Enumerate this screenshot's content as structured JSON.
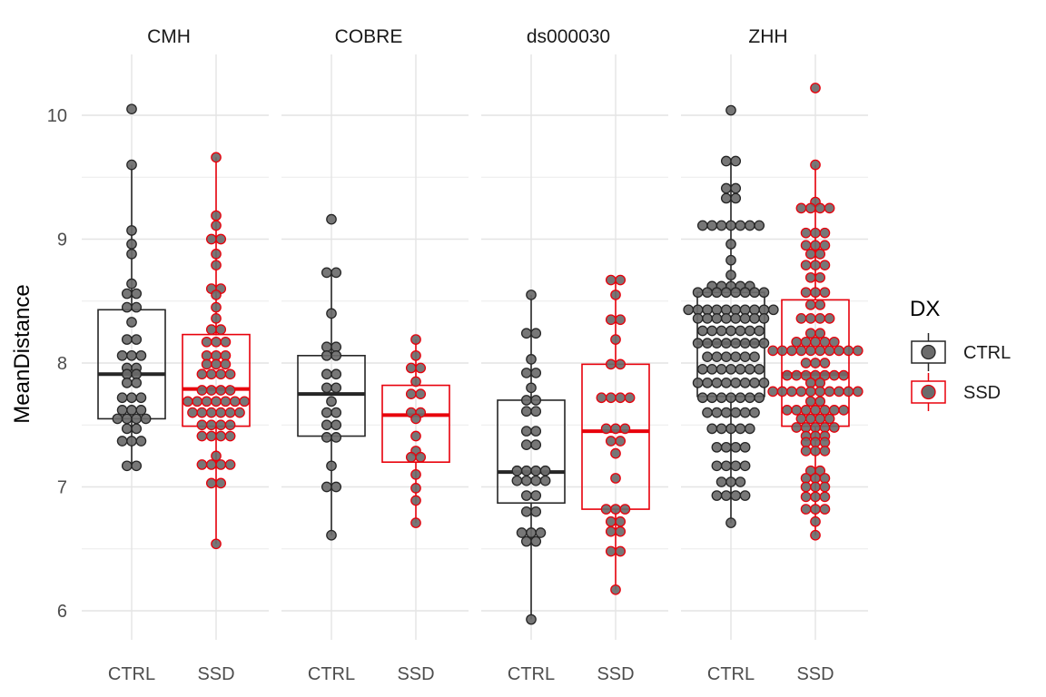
{
  "chart_data": {
    "type": "box",
    "facets": [
      "CMH",
      "COBRE",
      "ds000030",
      "ZHH"
    ],
    "groups": [
      "CTRL",
      "SSD"
    ],
    "ylabel": "MeanDistance",
    "ylim": [
      5.7,
      10.5
    ],
    "yticks": [
      6,
      7,
      8,
      9,
      10
    ],
    "grid": true,
    "legend": {
      "title": "DX",
      "position": "right",
      "entries": [
        {
          "label": "CTRL",
          "color": "#262626"
        },
        {
          "label": "SSD",
          "color": "#e8000b"
        }
      ]
    },
    "boxes": [
      {
        "facet": "CMH",
        "group": "CTRL",
        "min": 7.17,
        "q1": 7.55,
        "median": 7.91,
        "q3": 8.43,
        "max": 9.6
      },
      {
        "facet": "CMH",
        "group": "SSD",
        "min": 6.54,
        "q1": 7.49,
        "median": 7.79,
        "q3": 8.23,
        "max": 9.66
      },
      {
        "facet": "COBRE",
        "group": "CTRL",
        "min": 6.61,
        "q1": 7.41,
        "median": 7.75,
        "q3": 8.06,
        "max": 8.73
      },
      {
        "facet": "COBRE",
        "group": "SSD",
        "min": 6.71,
        "q1": 7.2,
        "median": 7.58,
        "q3": 7.82,
        "max": 8.19
      },
      {
        "facet": "ds000030",
        "group": "CTRL",
        "min": 5.93,
        "q1": 6.87,
        "median": 7.12,
        "q3": 7.7,
        "max": 8.55
      },
      {
        "facet": "ds000030",
        "group": "SSD",
        "min": 6.17,
        "q1": 6.82,
        "median": 7.45,
        "q3": 7.99,
        "max": 8.67
      },
      {
        "facet": "ZHH",
        "group": "CTRL",
        "min": 6.71,
        "q1": 7.73,
        "median": 8.16,
        "q3": 8.57,
        "max": 9.63
      },
      {
        "facet": "ZHH",
        "group": "SSD",
        "min": 6.61,
        "q1": 7.49,
        "median": 7.91,
        "q3": 8.51,
        "max": 9.6
      }
    ],
    "points": {
      "CMH": {
        "CTRL": [
          10.05,
          9.6,
          9.07,
          8.96,
          8.88,
          8.64,
          8.56,
          8.56,
          8.45,
          8.45,
          8.33,
          8.19,
          8.19,
          8.06,
          8.06,
          8.06,
          7.96,
          7.96,
          7.91,
          7.91,
          7.84,
          7.84,
          7.72,
          7.72,
          7.72,
          7.62,
          7.62,
          7.62,
          7.55,
          7.55,
          7.55,
          7.55,
          7.47,
          7.47,
          7.37,
          7.37,
          7.37,
          7.17,
          7.17
        ],
        "SSD": [
          9.66,
          9.19,
          9.11,
          9.0,
          9.0,
          8.88,
          8.79,
          8.6,
          8.6,
          8.55,
          8.45,
          8.36,
          8.27,
          8.27,
          8.17,
          8.17,
          8.17,
          8.06,
          8.06,
          8.06,
          7.99,
          7.99,
          7.99,
          7.91,
          7.91,
          7.91,
          7.91,
          7.78,
          7.78,
          7.78,
          7.78,
          7.69,
          7.69,
          7.69,
          7.69,
          7.69,
          7.69,
          7.69,
          7.6,
          7.6,
          7.6,
          7.6,
          7.6,
          7.6,
          7.5,
          7.5,
          7.5,
          7.5,
          7.41,
          7.41,
          7.41,
          7.41,
          7.25,
          7.18,
          7.18,
          7.18,
          7.18,
          7.03,
          7.03,
          6.54
        ]
      },
      "COBRE": {
        "CTRL": [
          9.16,
          8.73,
          8.73,
          8.4,
          8.13,
          8.13,
          8.06,
          8.06,
          7.91,
          7.91,
          7.8,
          7.8,
          7.69,
          7.6,
          7.6,
          7.5,
          7.5,
          7.4,
          7.4,
          7.17,
          7.0,
          7.0,
          6.61
        ],
        "SSD": [
          8.19,
          8.06,
          7.96,
          7.96,
          7.85,
          7.75,
          7.75,
          7.6,
          7.6,
          7.55,
          7.41,
          7.29,
          7.24,
          7.24,
          7.1,
          6.99,
          6.89,
          6.71
        ]
      },
      "ds000030": {
        "CTRL": [
          8.55,
          8.24,
          8.24,
          8.03,
          7.92,
          7.92,
          7.8,
          7.7,
          7.7,
          7.61,
          7.61,
          7.45,
          7.45,
          7.34,
          7.34,
          7.13,
          7.13,
          7.13,
          7.13,
          7.05,
          7.05,
          7.05,
          7.05,
          6.93,
          6.93,
          6.8,
          6.8,
          6.63,
          6.63,
          6.63,
          6.56,
          6.56,
          5.93
        ],
        "SSD": [
          8.67,
          8.67,
          8.55,
          8.35,
          8.35,
          8.19,
          7.99,
          7.99,
          7.72,
          7.72,
          7.72,
          7.72,
          7.47,
          7.47,
          7.47,
          7.37,
          7.37,
          7.27,
          7.07,
          6.82,
          6.82,
          6.82,
          6.72,
          6.72,
          6.64,
          6.64,
          6.48,
          6.48,
          6.17
        ]
      },
      "ZHH": {
        "CTRL": [
          10.04,
          9.63,
          9.63,
          9.41,
          9.41,
          9.33,
          9.33,
          9.11,
          9.11,
          9.11,
          9.11,
          9.11,
          9.11,
          9.11,
          8.96,
          8.83,
          8.71,
          8.62,
          8.62,
          8.62,
          8.62,
          8.62,
          8.57,
          8.57,
          8.57,
          8.57,
          8.57,
          8.57,
          8.57,
          8.57,
          8.43,
          8.43,
          8.43,
          8.43,
          8.43,
          8.43,
          8.43,
          8.43,
          8.43,
          8.43,
          8.36,
          8.36,
          8.36,
          8.36,
          8.36,
          8.36,
          8.36,
          8.36,
          8.26,
          8.26,
          8.26,
          8.26,
          8.26,
          8.26,
          8.26,
          8.16,
          8.16,
          8.16,
          8.16,
          8.16,
          8.16,
          8.16,
          8.16,
          8.05,
          8.05,
          8.05,
          8.05,
          8.05,
          8.05,
          7.95,
          7.95,
          7.95,
          7.95,
          7.95,
          7.95,
          7.95,
          7.84,
          7.84,
          7.84,
          7.84,
          7.84,
          7.84,
          7.84,
          7.84,
          7.72,
          7.72,
          7.72,
          7.72,
          7.72,
          7.72,
          7.72,
          7.6,
          7.6,
          7.6,
          7.6,
          7.6,
          7.6,
          7.47,
          7.47,
          7.47,
          7.47,
          7.47,
          7.32,
          7.32,
          7.32,
          7.32,
          7.17,
          7.17,
          7.17,
          7.17,
          7.04,
          7.04,
          7.04,
          6.93,
          6.93,
          6.93,
          6.93,
          6.71
        ],
        "SSD": [
          10.22,
          9.6,
          9.3,
          9.25,
          9.25,
          9.25,
          9.25,
          9.05,
          9.05,
          9.05,
          8.95,
          8.95,
          8.95,
          8.88,
          8.88,
          8.79,
          8.79,
          8.79,
          8.69,
          8.69,
          8.57,
          8.57,
          8.57,
          8.47,
          8.47,
          8.36,
          8.36,
          8.36,
          8.36,
          8.24,
          8.24,
          8.17,
          8.17,
          8.17,
          8.17,
          8.17,
          8.1,
          8.1,
          8.1,
          8.1,
          8.1,
          8.1,
          8.1,
          8.1,
          8.1,
          8.1,
          8.0,
          8.0,
          8.0,
          7.9,
          7.9,
          7.9,
          7.9,
          7.9,
          7.9,
          7.9,
          7.84,
          7.84,
          7.77,
          7.77,
          7.77,
          7.77,
          7.77,
          7.77,
          7.77,
          7.77,
          7.77,
          7.77,
          7.69,
          7.69,
          7.62,
          7.62,
          7.62,
          7.62,
          7.62,
          7.62,
          7.62,
          7.55,
          7.55,
          7.55,
          7.55,
          7.48,
          7.48,
          7.48,
          7.48,
          7.48,
          7.41,
          7.41,
          7.41,
          7.36,
          7.36,
          7.36,
          7.29,
          7.29,
          7.29,
          7.13,
          7.13,
          7.07,
          7.07,
          7.07,
          7.0,
          7.0,
          7.0,
          6.92,
          6.92,
          6.92,
          6.82,
          6.82,
          6.82,
          6.72,
          6.61
        ]
      }
    }
  }
}
